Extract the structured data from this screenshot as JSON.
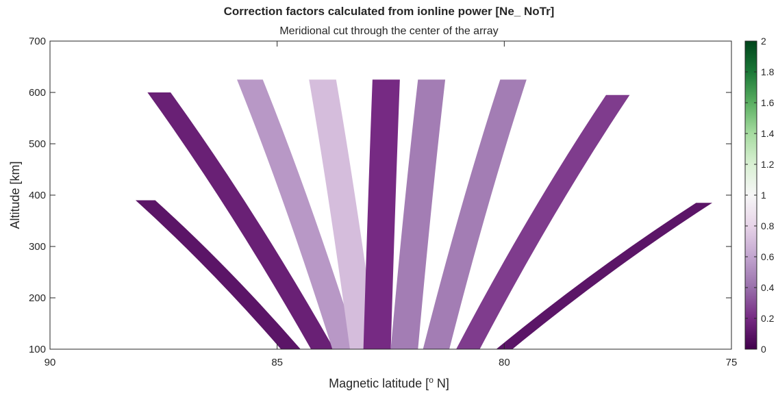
{
  "chart_data": {
    "type": "heatmap",
    "title": "Correction factors calculated from ionline power [Ne_ NoTr]",
    "subtitle": "Meridional cut through the center of the array",
    "xlabel": "Magnetic latitude [",
    "xlabel_sup": "o",
    "xlabel_end": " N]",
    "ylabel": "Altitude [km]",
    "xlim": [
      90,
      75
    ],
    "ylim": [
      100,
      700
    ],
    "x_ticks": [
      "90",
      "85",
      "80",
      "75"
    ],
    "x_tick_values": [
      90,
      85,
      80,
      75
    ],
    "y_ticks": [
      "100",
      "200",
      "300",
      "400",
      "500",
      "600",
      "700"
    ],
    "y_tick_values": [
      100,
      200,
      300,
      400,
      500,
      600,
      700
    ],
    "colorbar": {
      "min": 0,
      "max": 2,
      "ticks": [
        "0",
        "0.2",
        "0.4",
        "0.6",
        "0.8",
        "1",
        "1.2",
        "1.4",
        "1.6",
        "1.8",
        "2"
      ],
      "tick_values": [
        0,
        0.2,
        0.4,
        0.6,
        0.8,
        1,
        1.2,
        1.4,
        1.6,
        1.8,
        2
      ],
      "colormap": [
        "#40004b",
        "#762a83",
        "#9970ab",
        "#c2a5cf",
        "#e7d4e8",
        "#f7f7f7",
        "#d9f0d3",
        "#a6dba0",
        "#5aae61",
        "#1b7837",
        "#00441b"
      ]
    },
    "beams": [
      {
        "lat_bottom": 84.7,
        "lat_top": 87.9,
        "alt_top": 390,
        "value": 0.1
      },
      {
        "lat_bottom": 84.0,
        "lat_top": 87.6,
        "alt_top": 600,
        "value": 0.15
      },
      {
        "lat_bottom": 83.5,
        "lat_top": 85.6,
        "alt_top": 625,
        "value": 0.55
      },
      {
        "lat_bottom": 83.1,
        "lat_top": 84.0,
        "alt_top": 625,
        "value": 0.7
      },
      {
        "lat_bottom": 82.8,
        "lat_top": 82.6,
        "alt_top": 625,
        "value": 0.2
      },
      {
        "lat_bottom": 82.2,
        "lat_top": 81.6,
        "alt_top": 625,
        "value": 0.45
      },
      {
        "lat_bottom": 81.5,
        "lat_top": 79.8,
        "alt_top": 625,
        "value": 0.45
      },
      {
        "lat_bottom": 80.8,
        "lat_top": 77.5,
        "alt_top": 595,
        "value": 0.25
      },
      {
        "lat_bottom": 80.0,
        "lat_top": 75.6,
        "alt_top": 385,
        "value": 0.1
      }
    ],
    "grid": false
  }
}
